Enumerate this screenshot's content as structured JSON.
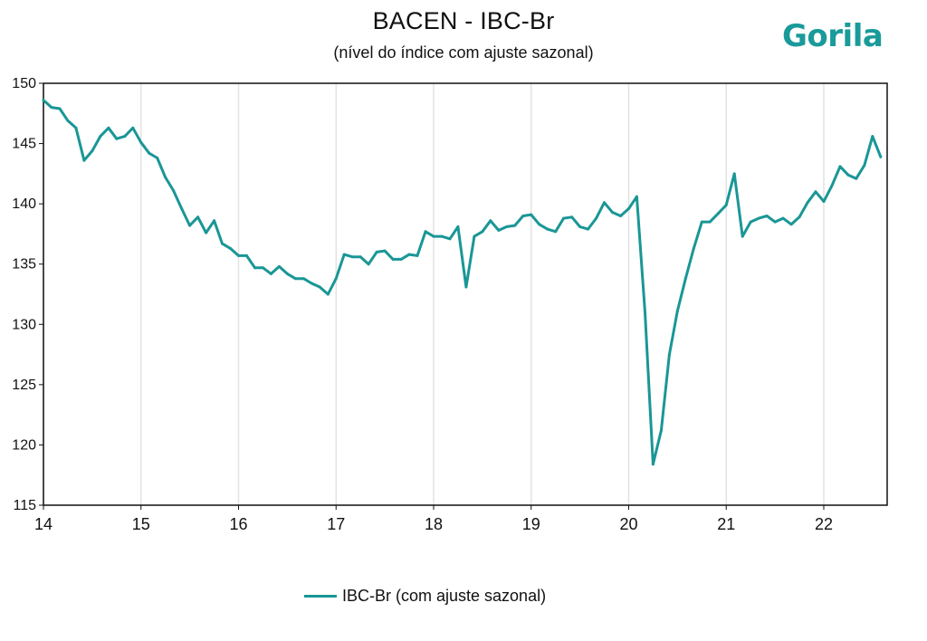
{
  "logo_text": "Gorila",
  "colors": {
    "series": "#1a9696",
    "logo": "#1a9a9a",
    "grid": "#e3e3e3"
  },
  "chart_data": {
    "type": "line",
    "title": "BACEN - IBC-Br",
    "subtitle": "(nível do índice com ajuste sazonal)",
    "xlabel": "",
    "ylabel": "",
    "xlim": [
      14,
      22.65
    ],
    "ylim": [
      115,
      150
    ],
    "x_ticks": [
      14,
      15,
      16,
      17,
      18,
      19,
      20,
      21,
      22
    ],
    "x_tick_labels": [
      "14",
      "15",
      "16",
      "17",
      "18",
      "19",
      "20",
      "21",
      "22"
    ],
    "y_ticks": [
      115,
      120,
      125,
      130,
      135,
      140,
      145,
      150
    ],
    "y_tick_labels": [
      "115",
      "120",
      "125",
      "130",
      "135",
      "140",
      "145",
      "150"
    ],
    "grid": "vertical",
    "legend_position": "bottom-center",
    "series": [
      {
        "name": "IBC-Br (com ajuste sazonal)",
        "x": [
          14.0,
          14.083,
          14.167,
          14.25,
          14.333,
          14.417,
          14.5,
          14.583,
          14.667,
          14.75,
          14.833,
          14.917,
          15.0,
          15.083,
          15.167,
          15.25,
          15.333,
          15.417,
          15.5,
          15.583,
          15.667,
          15.75,
          15.833,
          15.917,
          16.0,
          16.083,
          16.167,
          16.25,
          16.333,
          16.417,
          16.5,
          16.583,
          16.667,
          16.75,
          16.833,
          16.917,
          17.0,
          17.083,
          17.167,
          17.25,
          17.333,
          17.417,
          17.5,
          17.583,
          17.667,
          17.75,
          17.833,
          17.917,
          18.0,
          18.083,
          18.167,
          18.25,
          18.333,
          18.417,
          18.5,
          18.583,
          18.667,
          18.75,
          18.833,
          18.917,
          19.0,
          19.083,
          19.167,
          19.25,
          19.333,
          19.417,
          19.5,
          19.583,
          19.667,
          19.75,
          19.833,
          19.917,
          20.0,
          20.083,
          20.167,
          20.25,
          20.333,
          20.417,
          20.5,
          20.583,
          20.667,
          20.75,
          20.833,
          20.917,
          21.0,
          21.083,
          21.167,
          21.25,
          21.333,
          21.417,
          21.5,
          21.583,
          21.667,
          21.75,
          21.833,
          21.917,
          22.0,
          22.083,
          22.167,
          22.25,
          22.333,
          22.417,
          22.5,
          22.583
        ],
        "values": [
          148.6,
          148.0,
          147.9,
          146.9,
          146.3,
          143.6,
          144.4,
          145.6,
          146.3,
          145.4,
          145.6,
          146.3,
          145.1,
          144.2,
          143.8,
          142.2,
          141.1,
          139.6,
          138.2,
          138.9,
          137.6,
          138.6,
          136.7,
          136.3,
          135.7,
          135.7,
          134.7,
          134.7,
          134.2,
          134.8,
          134.2,
          133.8,
          133.8,
          133.4,
          133.1,
          132.5,
          133.8,
          135.8,
          135.6,
          135.6,
          135.0,
          136.0,
          136.1,
          135.4,
          135.4,
          135.8,
          135.7,
          137.7,
          137.3,
          137.3,
          137.1,
          138.1,
          133.1,
          137.3,
          137.7,
          138.6,
          137.8,
          138.1,
          138.2,
          139.0,
          139.1,
          138.3,
          137.9,
          137.7,
          138.8,
          138.9,
          138.1,
          137.9,
          138.8,
          140.1,
          139.3,
          139.0,
          139.6,
          140.6,
          131.0,
          118.4,
          121.2,
          127.5,
          131.1,
          133.8,
          136.3,
          138.5,
          138.5,
          139.2,
          139.9,
          142.5,
          137.3,
          138.5,
          138.8,
          139.0,
          138.5,
          138.8,
          138.3,
          138.9,
          140.1,
          141.0,
          140.2,
          141.5,
          143.1,
          142.4,
          142.1,
          143.2,
          145.6,
          143.9
        ]
      }
    ]
  }
}
